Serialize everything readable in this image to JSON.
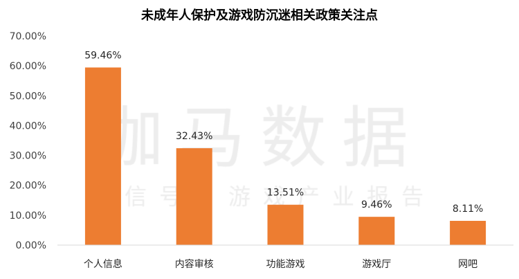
{
  "chart_data": {
    "type": "bar",
    "title": "未成年人保护及游戏防沉迷相关政策关注点",
    "categories": [
      "个人信息",
      "内容审核",
      "功能游戏",
      "游戏厅",
      "网吧"
    ],
    "values": [
      59.46,
      32.43,
      13.51,
      9.46,
      8.11
    ],
    "data_labels": [
      "59.46%",
      "32.43%",
      "13.51%",
      "9.46%",
      "8.11%"
    ],
    "yticks": [
      "0.00%",
      "10.00%",
      "20.00%",
      "30.00%",
      "40.00%",
      "50.00%",
      "60.00%",
      "70.00%"
    ],
    "ylim": [
      0,
      70
    ],
    "grid": false,
    "bar_color": "#ED7D31",
    "watermark": [
      "伽马数据",
      "微信号：游戏产业报告"
    ]
  }
}
